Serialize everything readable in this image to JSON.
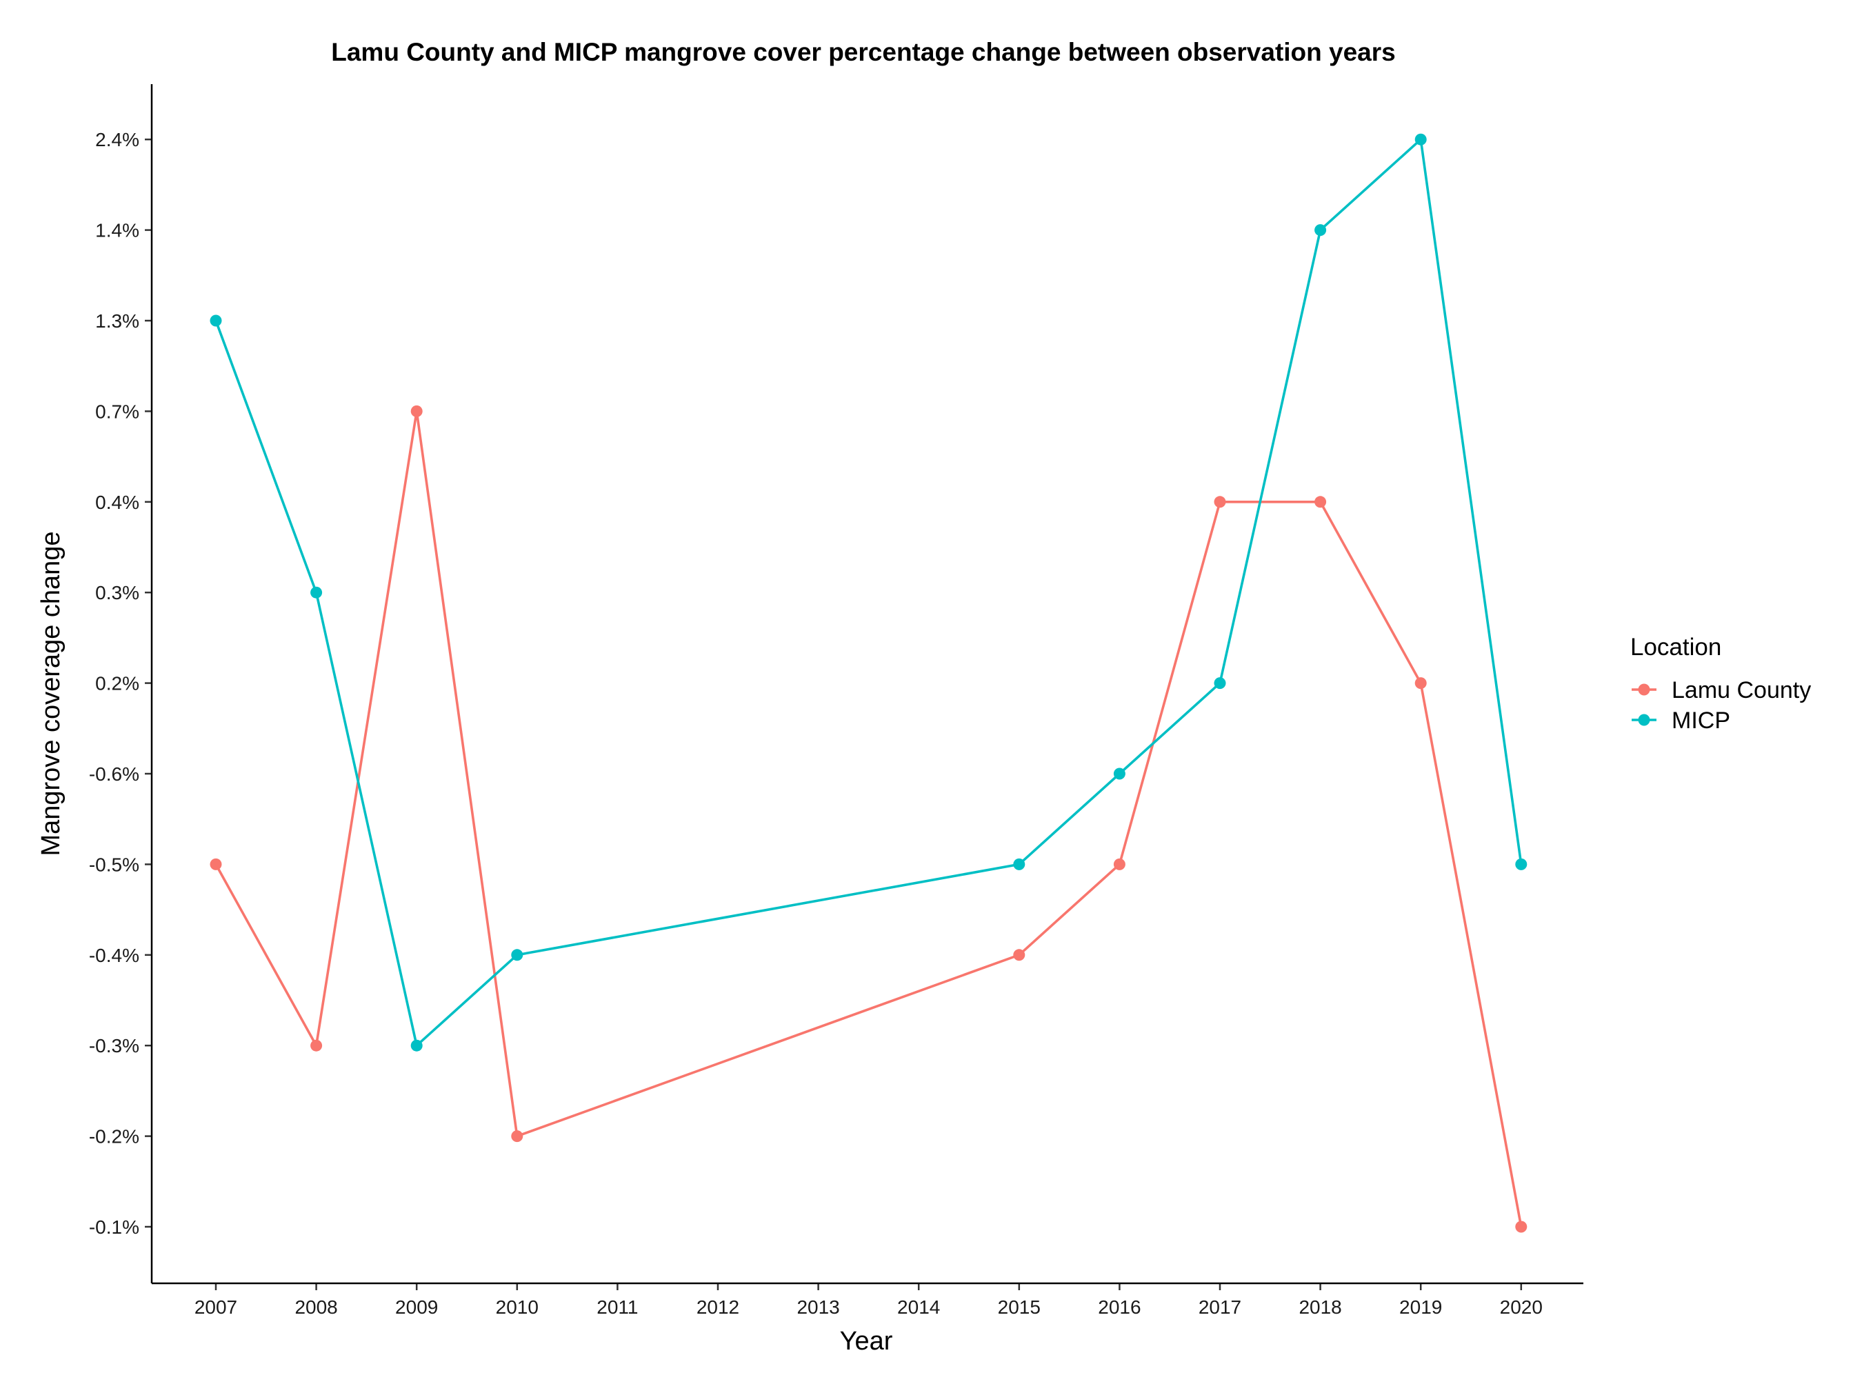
{
  "chart_data": {
    "type": "line",
    "title": "Lamu County and MICP mangrove cover percentage change between observation years",
    "xlabel": "Year",
    "ylabel": "Mangrove coverage change",
    "x_categories": [
      "2007",
      "2008",
      "2009",
      "2010",
      "2011",
      "2012",
      "2013",
      "2014",
      "2015",
      "2016",
      "2017",
      "2018",
      "2019",
      "2020"
    ],
    "y_categories": [
      "-0.1%",
      "-0.2%",
      "-0.3%",
      "-0.4%",
      "-0.5%",
      "-0.6%",
      "0.2%",
      "0.3%",
      "0.4%",
      "0.7%",
      "1.3%",
      "1.4%",
      "2.4%"
    ],
    "y_axis_note": "categorical axis, labels listed bottom to top",
    "legend": {
      "title": "Location",
      "position": "right"
    },
    "grid": false,
    "series": [
      {
        "name": "Lamu County",
        "color": "#F8766D",
        "points": [
          {
            "x": "2007",
            "y": "-0.5%"
          },
          {
            "x": "2008",
            "y": "-0.3%"
          },
          {
            "x": "2009",
            "y": "0.7%"
          },
          {
            "x": "2010",
            "y": "-0.2%"
          },
          {
            "x": "2015",
            "y": "-0.4%"
          },
          {
            "x": "2016",
            "y": "-0.5%"
          },
          {
            "x": "2017",
            "y": "0.4%"
          },
          {
            "x": "2018",
            "y": "0.4%"
          },
          {
            "x": "2019",
            "y": "0.2%"
          },
          {
            "x": "2020",
            "y": "-0.1%"
          }
        ]
      },
      {
        "name": "MICP",
        "color": "#00BFC4",
        "points": [
          {
            "x": "2007",
            "y": "1.3%"
          },
          {
            "x": "2008",
            "y": "0.3%"
          },
          {
            "x": "2009",
            "y": "-0.3%"
          },
          {
            "x": "2010",
            "y": "-0.4%"
          },
          {
            "x": "2015",
            "y": "-0.5%"
          },
          {
            "x": "2016",
            "y": "-0.6%"
          },
          {
            "x": "2017",
            "y": "0.2%"
          },
          {
            "x": "2018",
            "y": "1.4%"
          },
          {
            "x": "2019",
            "y": "2.4%"
          },
          {
            "x": "2020",
            "y": "-0.5%"
          }
        ]
      }
    ]
  }
}
